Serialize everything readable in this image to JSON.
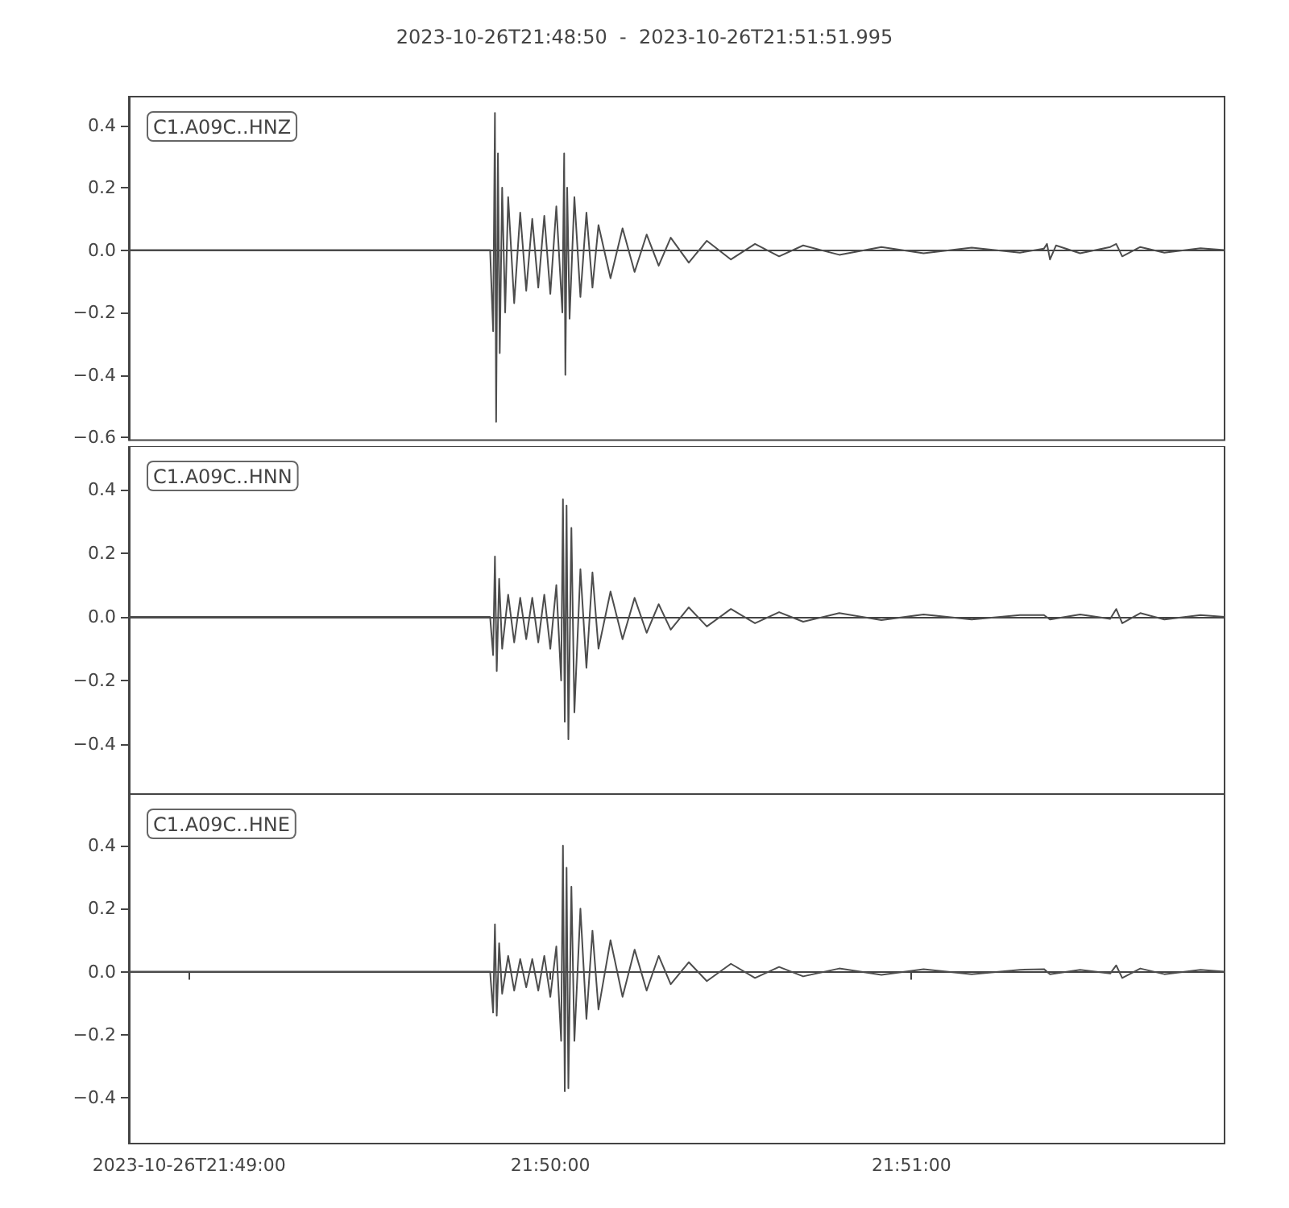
{
  "chart_data": [
    {
      "type": "line",
      "title": "2023-10-26T21:48:50  -  2023-10-26T21:51:51.995",
      "annotations": [
        "C1.A09C..HNZ"
      ],
      "tick_labels": "y",
      "line_style": "solid",
      "xlim": [
        "2023-10-26T21:48:50",
        "2023-10-26T21:51:51.995"
      ],
      "ylim": [
        -0.609,
        0.492
      ],
      "yticks": [
        {
          "value": -0.6,
          "label": "−0.6"
        },
        {
          "value": -0.4,
          "label": "−0.4"
        },
        {
          "value": -0.2,
          "label": "−0.2"
        },
        {
          "value": 0,
          "label": "0.0"
        },
        {
          "value": 0.2,
          "label": "0.2"
        },
        {
          "value": 0.4,
          "label": "0.4"
        }
      ],
      "x": [
        "2023-10-26T21:48:50",
        "2023-10-26T21:49:50",
        "2023-10-26T21:49:50.5",
        "2023-10-26T21:49:50.8",
        "2023-10-26T21:49:51",
        "2023-10-26T21:49:51.3",
        "2023-10-26T21:49:51.6",
        "2023-10-26T21:49:52",
        "2023-10-26T21:49:52.5",
        "2023-10-26T21:49:53",
        "2023-10-26T21:49:54",
        "2023-10-26T21:49:55",
        "2023-10-26T21:49:56",
        "2023-10-26T21:49:57",
        "2023-10-26T21:49:58",
        "2023-10-26T21:49:59",
        "2023-10-26T21:50:00",
        "2023-10-26T21:50:01",
        "2023-10-26T21:50:02",
        "2023-10-26T21:50:02.3",
        "2023-10-26T21:50:02.5",
        "2023-10-26T21:50:02.8",
        "2023-10-26T21:50:03.2",
        "2023-10-26T21:50:04",
        "2023-10-26T21:50:05",
        "2023-10-26T21:50:06",
        "2023-10-26T21:50:07",
        "2023-10-26T21:50:08",
        "2023-10-26T21:50:10",
        "2023-10-26T21:50:12",
        "2023-10-26T21:50:14",
        "2023-10-26T21:50:16",
        "2023-10-26T21:50:18",
        "2023-10-26T21:50:20",
        "2023-10-26T21:50:23",
        "2023-10-26T21:50:26",
        "2023-10-26T21:50:30",
        "2023-10-26T21:50:34",
        "2023-10-26T21:50:38",
        "2023-10-26T21:50:42",
        "2023-10-26T21:50:48",
        "2023-10-26T21:50:55",
        "2023-10-26T21:51:02",
        "2023-10-26T21:51:10",
        "2023-10-26T21:51:18",
        "2023-10-26T21:51:22",
        "2023-10-26T21:51:22.5",
        "2023-10-26T21:51:23",
        "2023-10-26T21:51:24",
        "2023-10-26T21:51:28",
        "2023-10-26T21:51:33",
        "2023-10-26T21:51:34",
        "2023-10-26T21:51:35",
        "2023-10-26T21:51:38",
        "2023-10-26T21:51:42",
        "2023-10-26T21:51:48",
        "2023-10-26T21:51:51.995"
      ],
      "series": [
        {
          "color": "#4d4d4d",
          "values": [
            0,
            0,
            -0.26,
            0.44,
            -0.55,
            0.31,
            -0.33,
            0.2,
            -0.2,
            0.17,
            -0.17,
            0.12,
            -0.13,
            0.1,
            -0.12,
            0.11,
            -0.14,
            0.14,
            -0.2,
            0.31,
            -0.4,
            0.2,
            -0.22,
            0.17,
            -0.15,
            0.12,
            -0.12,
            0.08,
            -0.09,
            0.07,
            -0.07,
            0.05,
            -0.05,
            0.04,
            -0.04,
            0.03,
            -0.03,
            0.02,
            -0.02,
            0.015,
            -0.015,
            0.01,
            -0.01,
            0.008,
            -0.008,
            0.005,
            0.02,
            -0.03,
            0.015,
            -0.01,
            0.01,
            0.02,
            -0.02,
            0.01,
            -0.008,
            0.006,
            0
          ]
        }
      ]
    },
    {
      "type": "line",
      "annotations": [
        "C1.A09C..HNN"
      ],
      "tick_labels": "y",
      "line_style": "solid",
      "xlim": [
        "2023-10-26T21:48:50",
        "2023-10-26T21:51:51.995"
      ],
      "ylim": [
        -0.557,
        0.537
      ],
      "yticks": [
        {
          "value": -0.4,
          "label": "−0.4"
        },
        {
          "value": -0.2,
          "label": "−0.2"
        },
        {
          "value": 0,
          "label": "0.0"
        },
        {
          "value": 0.2,
          "label": "0.2"
        },
        {
          "value": 0.4,
          "label": "0.4"
        }
      ],
      "x": [
        "2023-10-26T21:48:50",
        "2023-10-26T21:49:50",
        "2023-10-26T21:49:50.5",
        "2023-10-26T21:49:50.8",
        "2023-10-26T21:49:51.1",
        "2023-10-26T21:49:51.5",
        "2023-10-26T21:49:52",
        "2023-10-26T21:49:53",
        "2023-10-26T21:49:54",
        "2023-10-26T21:49:55",
        "2023-10-26T21:49:56",
        "2023-10-26T21:49:57",
        "2023-10-26T21:49:58",
        "2023-10-26T21:49:59",
        "2023-10-26T21:50:00",
        "2023-10-26T21:50:01",
        "2023-10-26T21:50:01.8",
        "2023-10-26T21:50:02.1",
        "2023-10-26T21:50:02.4",
        "2023-10-26T21:50:02.7",
        "2023-10-26T21:50:03",
        "2023-10-26T21:50:03.5",
        "2023-10-26T21:50:04",
        "2023-10-26T21:50:05",
        "2023-10-26T21:50:06",
        "2023-10-26T21:50:07",
        "2023-10-26T21:50:08",
        "2023-10-26T21:50:10",
        "2023-10-26T21:50:12",
        "2023-10-26T21:50:14",
        "2023-10-26T21:50:16",
        "2023-10-26T21:50:18",
        "2023-10-26T21:50:20",
        "2023-10-26T21:50:23",
        "2023-10-26T21:50:26",
        "2023-10-26T21:50:30",
        "2023-10-26T21:50:34",
        "2023-10-26T21:50:38",
        "2023-10-26T21:50:42",
        "2023-10-26T21:50:48",
        "2023-10-26T21:50:55",
        "2023-10-26T21:51:02",
        "2023-10-26T21:51:10",
        "2023-10-26T21:51:18",
        "2023-10-26T21:51:22",
        "2023-10-26T21:51:23",
        "2023-10-26T21:51:28",
        "2023-10-26T21:51:33",
        "2023-10-26T21:51:34",
        "2023-10-26T21:51:35",
        "2023-10-26T21:51:38",
        "2023-10-26T21:51:42",
        "2023-10-26T21:51:48",
        "2023-10-26T21:51:51.995"
      ],
      "series": [
        {
          "color": "#4d4d4d",
          "values": [
            0,
            0,
            -0.12,
            0.19,
            -0.17,
            0.12,
            -0.1,
            0.07,
            -0.08,
            0.06,
            -0.07,
            0.06,
            -0.08,
            0.07,
            -0.1,
            0.1,
            -0.2,
            0.37,
            -0.33,
            0.35,
            -0.385,
            0.28,
            -0.3,
            0.15,
            -0.16,
            0.14,
            -0.1,
            0.08,
            -0.07,
            0.06,
            -0.05,
            0.04,
            -0.04,
            0.03,
            -0.03,
            0.025,
            -0.02,
            0.015,
            -0.015,
            0.012,
            -0.01,
            0.008,
            -0.008,
            0.006,
            0.006,
            -0.008,
            0.008,
            -0.006,
            0.025,
            -0.02,
            0.012,
            -0.008,
            0.006,
            0
          ]
        }
      ]
    },
    {
      "type": "line",
      "annotations": [
        "C1.A09C..HNE"
      ],
      "line_style": "solid",
      "xlim": [
        "2023-10-26T21:48:50",
        "2023-10-26T21:51:51.995"
      ],
      "xticks": [
        {
          "value": "2023-10-26T21:49:00",
          "label": "2023-10-26T21:49:00"
        },
        {
          "value": "2023-10-26T21:50:00",
          "label": "21:50:00"
        },
        {
          "value": "2023-10-26T21:51:00",
          "label": "21:51:00"
        }
      ],
      "ylim": [
        -0.546,
        0.564
      ],
      "yticks": [
        {
          "value": -0.4,
          "label": "−0.4"
        },
        {
          "value": -0.2,
          "label": "−0.2"
        },
        {
          "value": 0,
          "label": "0.0"
        },
        {
          "value": 0.2,
          "label": "0.2"
        },
        {
          "value": 0.4,
          "label": "0.4"
        }
      ],
      "x": [
        "2023-10-26T21:48:50",
        "2023-10-26T21:49:50",
        "2023-10-26T21:49:50.5",
        "2023-10-26T21:49:50.8",
        "2023-10-26T21:49:51.1",
        "2023-10-26T21:49:51.5",
        "2023-10-26T21:49:52",
        "2023-10-26T21:49:53",
        "2023-10-26T21:49:54",
        "2023-10-26T21:49:55",
        "2023-10-26T21:49:56",
        "2023-10-26T21:49:57",
        "2023-10-26T21:49:58",
        "2023-10-26T21:49:59",
        "2023-10-26T21:50:00",
        "2023-10-26T21:50:01",
        "2023-10-26T21:50:01.8",
        "2023-10-26T21:50:02.1",
        "2023-10-26T21:50:02.4",
        "2023-10-26T21:50:02.7",
        "2023-10-26T21:50:03",
        "2023-10-26T21:50:03.5",
        "2023-10-26T21:50:04",
        "2023-10-26T21:50:05",
        "2023-10-26T21:50:06",
        "2023-10-26T21:50:07",
        "2023-10-26T21:50:08",
        "2023-10-26T21:50:10",
        "2023-10-26T21:50:12",
        "2023-10-26T21:50:14",
        "2023-10-26T21:50:16",
        "2023-10-26T21:50:18",
        "2023-10-26T21:50:20",
        "2023-10-26T21:50:23",
        "2023-10-26T21:50:26",
        "2023-10-26T21:50:30",
        "2023-10-26T21:50:34",
        "2023-10-26T21:50:38",
        "2023-10-26T21:50:42",
        "2023-10-26T21:50:48",
        "2023-10-26T21:50:55",
        "2023-10-26T21:51:02",
        "2023-10-26T21:51:10",
        "2023-10-26T21:51:18",
        "2023-10-26T21:51:22",
        "2023-10-26T21:51:23",
        "2023-10-26T21:51:28",
        "2023-10-26T21:51:33",
        "2023-10-26T21:51:34",
        "2023-10-26T21:51:35",
        "2023-10-26T21:51:38",
        "2023-10-26T21:51:42",
        "2023-10-26T21:51:48",
        "2023-10-26T21:51:51.995"
      ],
      "series": [
        {
          "color": "#4d4d4d",
          "values": [
            0,
            0,
            -0.13,
            0.15,
            -0.14,
            0.09,
            -0.07,
            0.05,
            -0.06,
            0.04,
            -0.05,
            0.04,
            -0.06,
            0.05,
            -0.08,
            0.08,
            -0.22,
            0.4,
            -0.38,
            0.33,
            -0.37,
            0.27,
            -0.22,
            0.2,
            -0.15,
            0.13,
            -0.12,
            0.1,
            -0.08,
            0.07,
            -0.06,
            0.05,
            -0.04,
            0.03,
            -0.03,
            0.025,
            -0.02,
            0.015,
            -0.015,
            0.01,
            -0.01,
            0.008,
            -0.008,
            0.006,
            0.008,
            -0.008,
            0.006,
            -0.006,
            0.02,
            -0.02,
            0.01,
            -0.008,
            0.006,
            0
          ]
        }
      ]
    }
  ]
}
